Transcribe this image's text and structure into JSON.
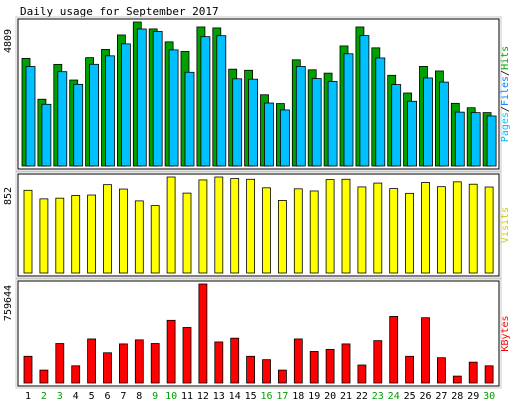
{
  "chart_data": {
    "type": "bar",
    "title": "Daily usage for September 2017",
    "days": [
      "1",
      "2",
      "3",
      "4",
      "5",
      "6",
      "7",
      "8",
      "9",
      "10",
      "11",
      "12",
      "13",
      "14",
      "15",
      "16",
      "17",
      "18",
      "19",
      "20",
      "21",
      "22",
      "23",
      "24",
      "25",
      "26",
      "27",
      "28",
      "29",
      "30"
    ],
    "weekend_days": [
      "2",
      "3",
      "9",
      "10",
      "16",
      "17",
      "23",
      "24",
      "30"
    ],
    "panels": [
      {
        "name": "hits-files-pages",
        "max_label": "4809",
        "ymax": 4809,
        "labels": [
          {
            "text": "Pages",
            "color": "#00c0ff"
          },
          {
            "text": "/",
            "color": "#000000"
          },
          {
            "text": "Files",
            "color": "#0080ff"
          },
          {
            "text": "/",
            "color": "#000000"
          },
          {
            "text": "Hits",
            "color": "#00a000"
          }
        ],
        "series": [
          {
            "name": "Hits",
            "color": "#00a000",
            "values": [
              3594,
              2230,
              3394,
              2871,
              3619,
              3893,
              4376,
              4809,
              4578,
              4146,
              3826,
              4643,
              4611,
              3234,
              3197,
              2379,
              2085,
              3546,
              3212,
              3101,
              4010,
              4643,
              3946,
              3029,
              2438,
              3326,
              3174,
              2093,
              1946,
              1783
            ]
          },
          {
            "name": "Files",
            "color": "#00c0ff",
            "values": [
              3323,
              2061,
              3150,
              2727,
              3396,
              3679,
              4079,
              4576,
              4493,
              3878,
              3130,
              4319,
              4352,
              2912,
              2899,
              2103,
              1872,
              3325,
              2921,
              2826,
              3748,
              4354,
              3608,
              2719,
              2162,
              2940,
              2802,
              1799,
              1782,
              1671
            ]
          }
        ]
      },
      {
        "name": "visits",
        "max_label": "852",
        "ymax": 852,
        "labels": [
          {
            "text": "Visits",
            "color": "#cccc00"
          }
        ],
        "series": [
          {
            "name": "Visits",
            "color": "#ffff00",
            "values": [
              734,
              658,
              664,
              687,
              692,
              784,
              745,
              640,
              598,
              852,
              709,
              826,
              852,
              838,
              832,
              756,
              644,
              747,
              728,
              829,
              832,
              764,
              798,
              749,
              707,
              803,
              766,
              809,
              788,
              763
            ]
          }
        ]
      },
      {
        "name": "kbytes",
        "max_label": "759644",
        "ymax": 759644,
        "labels": [
          {
            "text": "KBytes",
            "color": "#ff0000"
          }
        ],
        "series": [
          {
            "name": "KBytes",
            "color": "#ff0000",
            "values": [
              205000,
              99000,
              303000,
              132000,
              338000,
              232000,
              300000,
              331000,
              303000,
              481000,
              426000,
              759644,
              315000,
              344000,
              205000,
              179000,
              99000,
              338000,
              242000,
              258000,
              300000,
              138000,
              325000,
              511000,
              205000,
              501000,
              194000,
              53000,
              160000,
              132000
            ]
          }
        ]
      }
    ]
  }
}
